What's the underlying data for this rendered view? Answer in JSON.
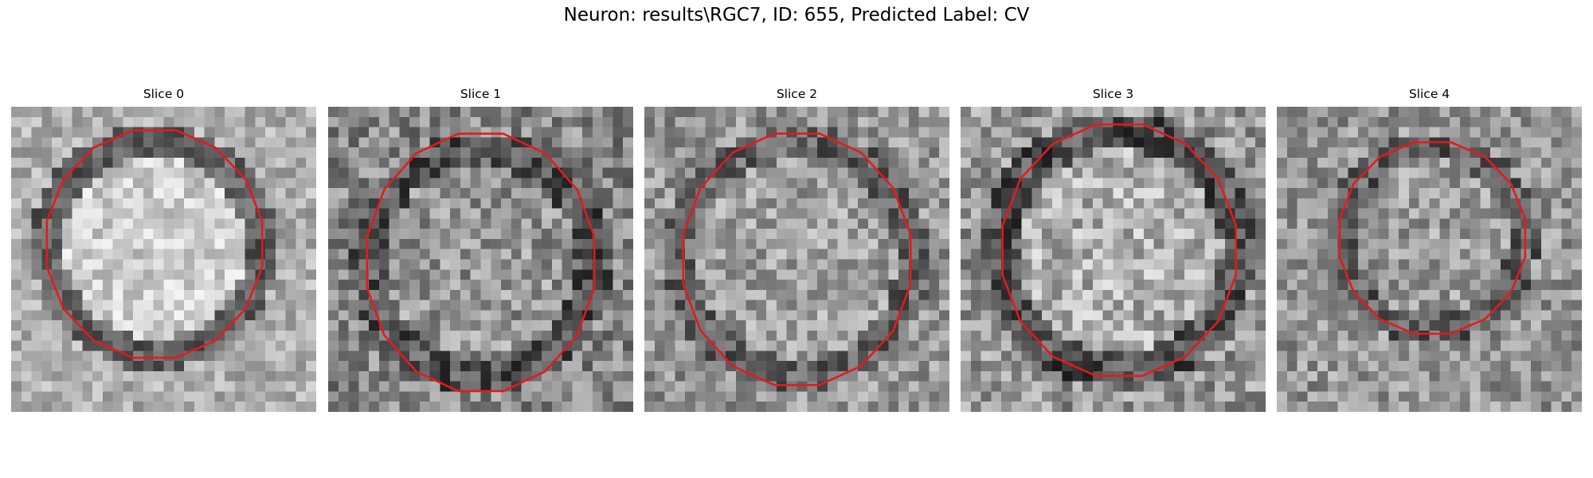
{
  "figure": {
    "title": "Neuron: results\\RGC7, ID: 655, Predicted Label: CV",
    "contour_color": "#e41a1c",
    "grid_size": 30
  },
  "slices": [
    {
      "title": "Slice 0"
    },
    {
      "title": "Slice 1"
    },
    {
      "title": "Slice 2"
    },
    {
      "title": "Slice 3"
    },
    {
      "title": "Slice 4"
    }
  ]
}
